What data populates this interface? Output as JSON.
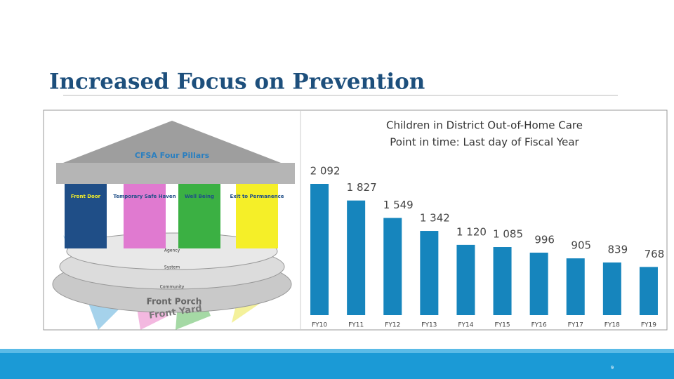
{
  "slide": {
    "title": "Increased Focus on Prevention",
    "page_number": "9"
  },
  "illustration": {
    "roof": "CFSA Four Pillars",
    "pillars": [
      "Front Door",
      "Temporary Safe Haven",
      "Well Being",
      "Exit to Permanence"
    ],
    "tiers": [
      "Agency",
      "System",
      "Community"
    ],
    "porch": "Front Porch",
    "yard": "Front Yard"
  },
  "chart_data": {
    "type": "bar",
    "title": "Children in District Out-of-Home Care",
    "subtitle": "Point in time: Last day of Fiscal Year",
    "categories": [
      "FY10",
      "FY11",
      "FY12",
      "FY13",
      "FY14",
      "FY15",
      "FY16",
      "FY17",
      "FY18",
      "FY19"
    ],
    "values": [
      2092,
      1827,
      1549,
      1342,
      1120,
      1085,
      996,
      905,
      839,
      768
    ],
    "value_labels": [
      "2 092",
      "1 827",
      "1 549",
      "1 342",
      "1 120",
      "1 085",
      "996",
      "905",
      "839",
      "768"
    ],
    "color": "#1685bd",
    "grid": false
  }
}
